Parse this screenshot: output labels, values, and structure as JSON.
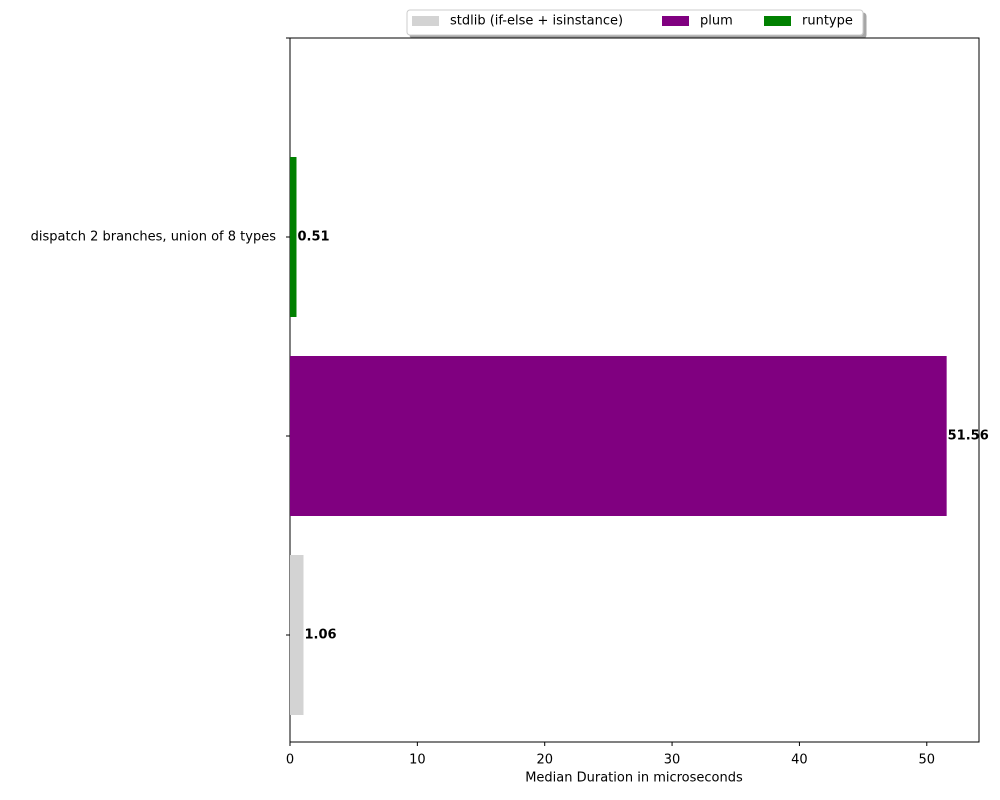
{
  "chart_data": {
    "type": "barh",
    "xlabel": "Median Duration in microseconds",
    "categories": [
      null,
      null,
      "dispatch 2 branches, union of 8 types",
      null
    ],
    "series": [
      {
        "name": "stdlib (if-else + isinstance)",
        "color": "#d3d3d3",
        "values": [
          1.06,
          null,
          null,
          null
        ]
      },
      {
        "name": "plum",
        "color": "#800080",
        "values": [
          null,
          51.56,
          null,
          null
        ]
      },
      {
        "name": "runtype",
        "color": "#008000",
        "values": [
          null,
          null,
          0.51,
          null
        ]
      }
    ],
    "xlim": [
      0,
      54.1
    ],
    "xticks": [
      0,
      10,
      20,
      30,
      40,
      50
    ],
    "legend": "upper center",
    "value_labels_bold": true
  }
}
